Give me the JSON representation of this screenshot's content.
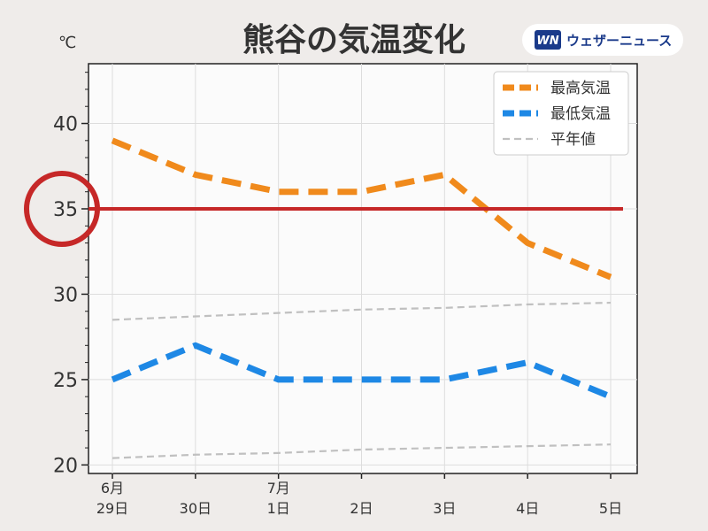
{
  "chart_data": {
    "type": "line",
    "title": "熊谷の気温変化",
    "y_unit": "℃",
    "categories": [
      {
        "top": "6月",
        "bottom": "29日"
      },
      {
        "top": "",
        "bottom": "30日"
      },
      {
        "top": "7月",
        "bottom": "1日"
      },
      {
        "top": "",
        "bottom": "2日"
      },
      {
        "top": "",
        "bottom": "3日"
      },
      {
        "top": "",
        "bottom": "4日"
      },
      {
        "top": "",
        "bottom": "5日"
      }
    ],
    "ylim": [
      19.5,
      43.5
    ],
    "yticks": [
      20,
      25,
      30,
      35,
      40
    ],
    "grid": true,
    "legend_position": "top-right",
    "series": [
      {
        "name": "最高気温",
        "values": [
          39,
          37,
          36,
          36,
          37,
          33,
          31
        ],
        "color": "#f08a1c",
        "style": "dashed-thick"
      },
      {
        "name": "最低気温",
        "values": [
          25,
          27,
          25,
          25,
          25,
          26,
          24
        ],
        "color": "#1e88e5",
        "style": "dashed-thick"
      },
      {
        "name": "平年値",
        "values": [
          28.5,
          28.7,
          28.9,
          29.1,
          29.2,
          29.4,
          29.5
        ],
        "color": "#c0c0c0",
        "style": "dashed-thin"
      },
      {
        "name": "",
        "values": [
          20.4,
          20.6,
          20.7,
          20.9,
          21.0,
          21.1,
          21.2
        ],
        "color": "#c0c0c0",
        "style": "dashed-thin"
      }
    ],
    "reference_line": {
      "value": 35,
      "color": "#c62828"
    },
    "highlight_circle": {
      "value": 35,
      "color": "#c62828"
    }
  },
  "logo": {
    "text": "ウェザーニュース",
    "mark": "WN"
  }
}
